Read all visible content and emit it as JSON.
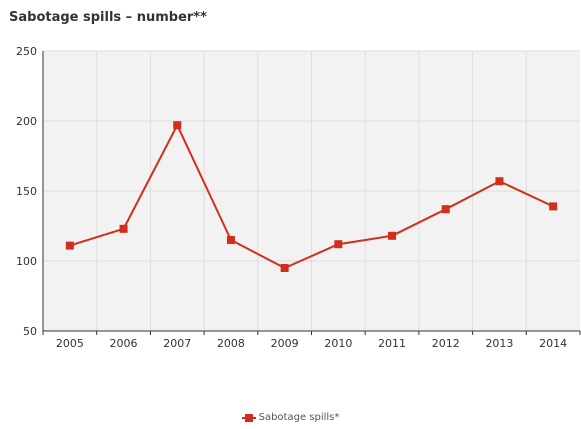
{
  "colors": {
    "series": "#d22e1b",
    "plot_background": "#f2f2f2",
    "grid": "#dddddd",
    "axis": "#333333",
    "tick_text": "#333333"
  },
  "chart_data": {
    "type": "line",
    "title": "Sabotage spills – number**",
    "xlabel": "",
    "ylabel": "",
    "categories": [
      "2005",
      "2006",
      "2007",
      "2008",
      "2009",
      "2010",
      "2011",
      "2012",
      "2013",
      "2014"
    ],
    "series": [
      {
        "name": "Sabotage spills*",
        "values": [
          111,
          123,
          197,
          115,
          95,
          112,
          118,
          137,
          157,
          139
        ],
        "marker": "square"
      }
    ],
    "ylim": [
      50,
      250
    ],
    "yticks": [
      50,
      100,
      150,
      200,
      250
    ],
    "grid": true,
    "legend": "bottom-center"
  }
}
